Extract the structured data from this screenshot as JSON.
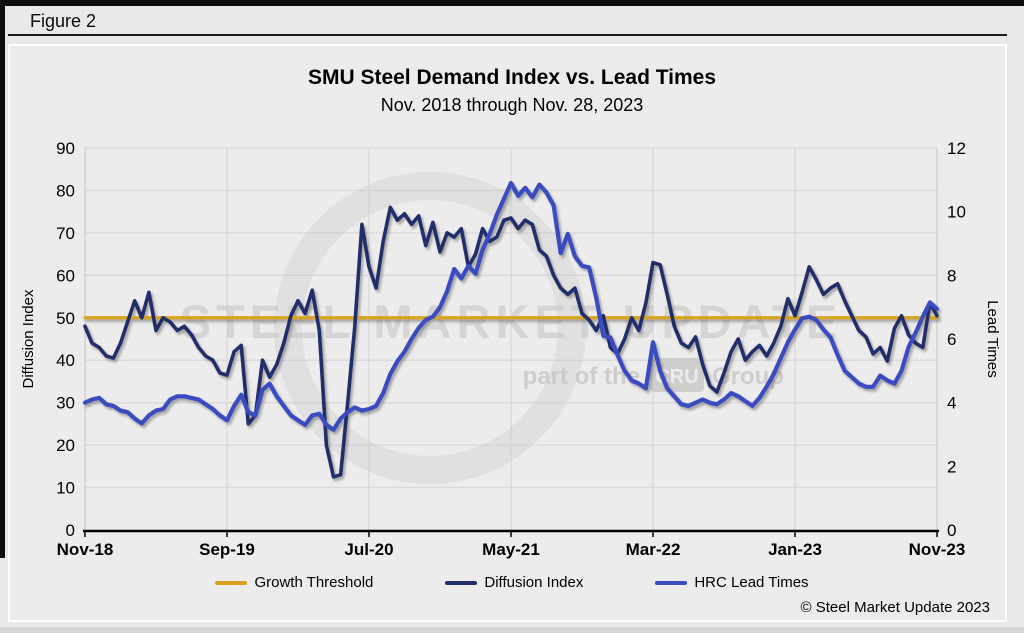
{
  "figure": {
    "label": "Figure 2"
  },
  "header": {
    "title": "SMU Steel Demand Index vs. Lead Times",
    "subtitle": "Nov. 2018 through Nov. 28, 2023"
  },
  "axes": {
    "left_label": "Diffusion Index",
    "right_label": "Lead Times"
  },
  "legend": [
    {
      "label": "Growth Threshold",
      "color": "#d9a31f"
    },
    {
      "label": "Diffusion Index",
      "color": "#232e6a"
    },
    {
      "label": "HRC Lead Times",
      "color": "#3a4cc0"
    }
  ],
  "watermark": {
    "line1": "STEEL MARKET UPDATE",
    "line2": "part of the",
    "badge": "CRU",
    "line3": "Group"
  },
  "copyright": "© Steel Market Update 2023",
  "colors": {
    "threshold": "#d9a31f",
    "diffusion": "#232e6a",
    "lead_times": "#3a4cc0",
    "gridline": "#d9d9d9",
    "axis_line": "#000000",
    "plot_side_line": "#c9c9c9",
    "watermark_gray": "#c7c7c7"
  },
  "chart_data": {
    "type": "line",
    "title": "SMU Steel Demand Index vs. Lead Times",
    "subtitle": "Nov. 2018 through Nov. 28, 2023",
    "x_axis": {
      "tick_labels": [
        "Nov-18",
        "Sep-19",
        "Jul-20",
        "May-21",
        "Mar-22",
        "Jan-23",
        "Nov-23"
      ],
      "tick_month_positions": [
        0,
        10,
        20,
        30,
        40,
        50,
        60
      ],
      "start": "Nov-2018",
      "end": "Nov-2023",
      "sampling": "semi-monthly (2 points per month)"
    },
    "left_axis": {
      "label": "Diffusion Index",
      "min": 0,
      "max": 90,
      "tick_step": 10,
      "ticks": [
        0,
        10,
        20,
        30,
        40,
        50,
        60,
        70,
        80,
        90
      ]
    },
    "right_axis": {
      "label": "Lead Times",
      "min": 0,
      "max": 12,
      "tick_step": 2,
      "ticks": [
        0,
        2,
        4,
        6,
        8,
        10,
        12
      ]
    },
    "threshold": {
      "name": "Growth Threshold",
      "value": 50,
      "axis": "left"
    },
    "grid": true,
    "legend_position": "bottom",
    "series": [
      {
        "name": "Diffusion Index",
        "axis": "left",
        "values": [
          48,
          44,
          43,
          41,
          40.5,
          44,
          49,
          54,
          50,
          56,
          47,
          50,
          49,
          47,
          48,
          46,
          43,
          41,
          40,
          37,
          36.5,
          42,
          43.5,
          25,
          27,
          40,
          36,
          39,
          44,
          50.5,
          54,
          51,
          56.5,
          47,
          20,
          12.5,
          13,
          30,
          48,
          72,
          62,
          57,
          68,
          76,
          73,
          74.5,
          72,
          74,
          67,
          72.5,
          65.5,
          70,
          69,
          71,
          62,
          65,
          71,
          68,
          69,
          73,
          73.5,
          71,
          73,
          72,
          66,
          64.5,
          60,
          57,
          55.5,
          57,
          51,
          49.5,
          47,
          50.5,
          43,
          41.5,
          45,
          50,
          47,
          53.5,
          63,
          62.5,
          55.5,
          48,
          44,
          43,
          45.5,
          39,
          34,
          32.5,
          37,
          42,
          45,
          40,
          42,
          43.5,
          41,
          44,
          48,
          54.5,
          50.5,
          56,
          62,
          59,
          55.5,
          57,
          58,
          54,
          50.5,
          47,
          45.5,
          41.5,
          43,
          39.8,
          47.5,
          50.5,
          46,
          44,
          43,
          53.5,
          50.5
        ]
      },
      {
        "name": "HRC Lead Times",
        "axis": "right",
        "values": [
          4.0,
          4.1,
          4.15,
          3.95,
          3.9,
          3.75,
          3.7,
          3.5,
          3.35,
          3.6,
          3.75,
          3.8,
          4.1,
          4.2,
          4.2,
          4.15,
          4.1,
          3.95,
          3.8,
          3.6,
          3.45,
          3.9,
          4.25,
          3.7,
          3.6,
          4.4,
          4.6,
          4.2,
          3.9,
          3.6,
          3.45,
          3.3,
          3.6,
          3.65,
          3.3,
          3.15,
          3.5,
          3.7,
          3.85,
          3.75,
          3.8,
          3.9,
          4.3,
          4.9,
          5.3,
          5.6,
          6.0,
          6.35,
          6.6,
          6.7,
          7.0,
          7.5,
          8.2,
          7.9,
          8.3,
          8.05,
          8.8,
          9.3,
          9.9,
          10.4,
          10.9,
          10.5,
          10.75,
          10.45,
          10.85,
          10.6,
          10.2,
          8.7,
          9.3,
          8.6,
          8.3,
          8.25,
          7.3,
          6.1,
          6.05,
          5.5,
          5.0,
          4.7,
          4.6,
          4.45,
          5.9,
          5.0,
          4.45,
          4.2,
          3.95,
          3.9,
          4.0,
          4.1,
          4.0,
          3.95,
          4.1,
          4.3,
          4.2,
          4.05,
          3.9,
          4.15,
          4.5,
          4.9,
          5.4,
          5.9,
          6.3,
          6.65,
          6.7,
          6.6,
          6.3,
          6.05,
          5.5,
          5.0,
          4.8,
          4.6,
          4.5,
          4.5,
          4.85,
          4.7,
          4.6,
          5.0,
          5.75,
          6.2,
          6.7,
          7.15,
          6.95
        ]
      }
    ]
  }
}
